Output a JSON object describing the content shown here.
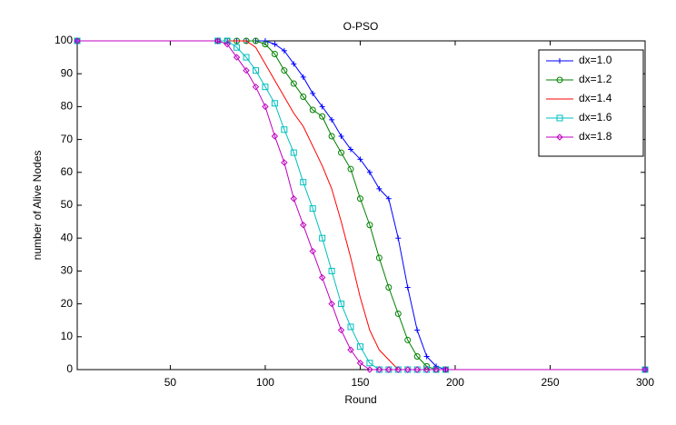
{
  "chart_data": {
    "type": "line",
    "title": "O-PSO",
    "x_label": "Round",
    "y_label": "number of Alive Nodes",
    "x": [
      1,
      75,
      80,
      85,
      90,
      95,
      100,
      105,
      110,
      115,
      120,
      125,
      130,
      135,
      140,
      145,
      150,
      155,
      160,
      165,
      170,
      175,
      180,
      185,
      190,
      195,
      300
    ],
    "series": [
      {
        "name": "dx=1.0",
        "color": "#0000ff",
        "marker": "plus",
        "values": [
          100,
          100,
          100,
          100,
          100,
          100,
          100,
          99,
          97,
          93,
          89,
          84,
          80,
          76,
          71,
          67,
          64,
          60,
          55,
          52,
          40,
          25,
          12,
          4,
          1,
          0,
          0
        ]
      },
      {
        "name": "dx=1.2",
        "color": "#008000",
        "marker": "circle",
        "values": [
          100,
          100,
          100,
          100,
          100,
          100,
          99,
          96,
          91,
          87,
          83,
          79,
          77,
          71,
          66,
          61,
          52,
          44,
          34,
          25,
          17,
          9,
          4,
          1,
          0,
          0,
          0
        ]
      },
      {
        "name": "dx=1.4",
        "color": "#ff0000",
        "marker": "none",
        "values": [
          100,
          100,
          100,
          100,
          100,
          98,
          93,
          88,
          83,
          78,
          74,
          68,
          62,
          55,
          45,
          34,
          22,
          12,
          6,
          3,
          0,
          0,
          0,
          0,
          0,
          0,
          0
        ]
      },
      {
        "name": "dx=1.6",
        "color": "#00bfbf",
        "marker": "square",
        "values": [
          100,
          100,
          100,
          98,
          95,
          91,
          86,
          81,
          73,
          66,
          57,
          49,
          40,
          30,
          20,
          13,
          7,
          2,
          0,
          0,
          0,
          0,
          0,
          0,
          0,
          0,
          0
        ]
      },
      {
        "name": "dx=1.8",
        "color": "#bf00bf",
        "marker": "diamond",
        "values": [
          100,
          100,
          99,
          95,
          91,
          86,
          80,
          71,
          63,
          52,
          44,
          36,
          28,
          20,
          12,
          6,
          2,
          0,
          0,
          0,
          0,
          0,
          0,
          0,
          0,
          0,
          0
        ]
      }
    ],
    "xlim": [
      1,
      300
    ],
    "xticks": [
      50,
      100,
      150,
      200,
      250,
      300
    ],
    "ylim": [
      0,
      100
    ],
    "yticks": [
      0,
      10,
      20,
      30,
      40,
      50,
      60,
      70,
      80,
      90,
      100
    ],
    "grid": false,
    "legend_position": "northeast"
  }
}
